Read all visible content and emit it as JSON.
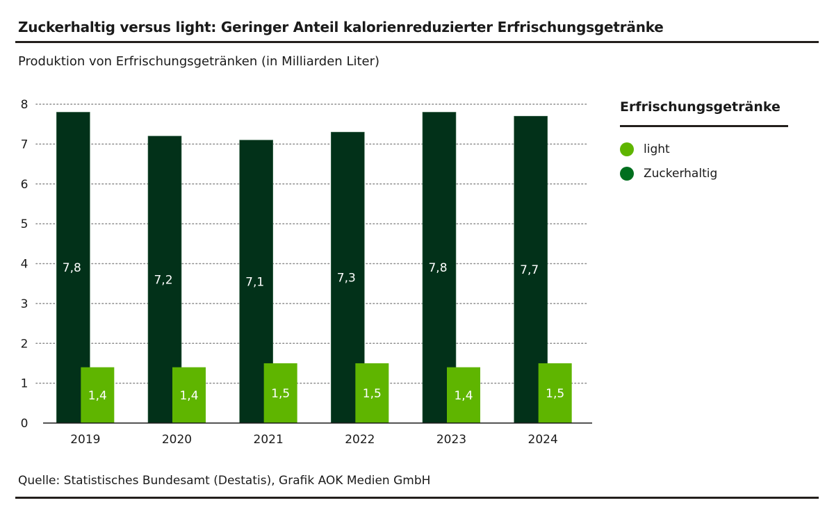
{
  "header": {
    "title": "Zuckerhaltig versus light: Geringer Anteil kalorienreduzierter Erfrischungsgetränke",
    "subtitle": "Produktion von Erfrischungsgetränken (in Milliarden Liter)"
  },
  "legend": {
    "title": "Erfrischungsgetränke",
    "items": [
      {
        "label": "light",
        "color": "#5fb500"
      },
      {
        "label": "Zuckerhaltig",
        "color": "#006f1e"
      }
    ]
  },
  "footer": {
    "source": "Quelle: Statistisches Bundesamt (Destatis), Grafik AOK Medien GmbH"
  },
  "chart_data": {
    "type": "bar",
    "title": "Zuckerhaltig versus light: Geringer Anteil kalorienreduzierter Erfrischungsgetränke",
    "subtitle": "Produktion von Erfrischungsgetränken (in Milliarden Liter)",
    "xlabel": "",
    "ylabel": "Milliarden Liter",
    "categories": [
      "2019",
      "2020",
      "2021",
      "2022",
      "2023",
      "2024"
    ],
    "ylim": [
      0,
      8
    ],
    "yticks": [
      0,
      1,
      2,
      3,
      4,
      5,
      6,
      7,
      8
    ],
    "grid": true,
    "legend_position": "right",
    "series": [
      {
        "name": "Zuckerhaltig",
        "color": "#023119",
        "values": [
          7.8,
          7.2,
          7.1,
          7.3,
          7.8,
          7.7
        ],
        "labels": [
          "7,8",
          "7,2",
          "7,1",
          "7,3",
          "7,8",
          "7,7"
        ]
      },
      {
        "name": "light",
        "color": "#5fb500",
        "values": [
          1.4,
          1.4,
          1.5,
          1.5,
          1.4,
          1.5
        ],
        "labels": [
          "1,4",
          "1,4",
          "1,5",
          "1,5",
          "1,4",
          "1,5"
        ]
      }
    ]
  }
}
